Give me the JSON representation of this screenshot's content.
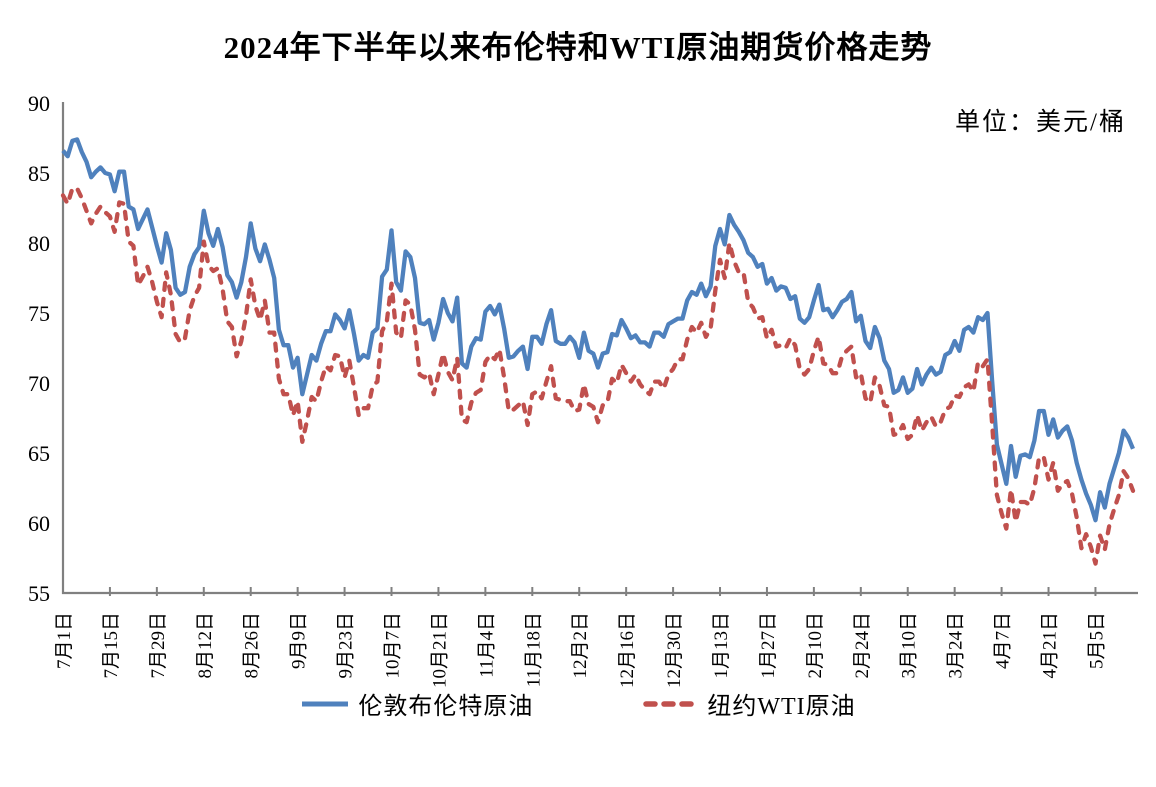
{
  "chart_data": {
    "type": "line",
    "title": "2024年下半年以来布伦特和WTI原油期货价格走势",
    "unit_label": "单位：美元/桶",
    "ylim": [
      55,
      90
    ],
    "yticks": [
      55,
      60,
      65,
      70,
      75,
      80,
      85,
      90
    ],
    "x_tick_interval": 10,
    "x_tick_labels": [
      "7月1日",
      "7月15日",
      "7月29日",
      "8月12日",
      "8月26日",
      "9月9日",
      "9月23日",
      "10月7日",
      "10月21日",
      "11月4日",
      "11月18日",
      "12月2日",
      "12月16日",
      "12月30日",
      "1月13日",
      "1月27日",
      "2月10日",
      "2月24日",
      "3月10日",
      "3月24日",
      "4月7日",
      "4月21日",
      "5月5日"
    ],
    "grid": false,
    "legend_position": "bottom",
    "axis_color": "#808080",
    "text_color": "#000000",
    "series": [
      {
        "name": "伦敦布伦特原油",
        "color": "#4F81BD",
        "style": "solid",
        "values": [
          86.6,
          86.2,
          87.3,
          87.4,
          86.5,
          85.8,
          84.7,
          85.1,
          85.4,
          85.0,
          84.9,
          83.7,
          85.1,
          85.1,
          82.6,
          82.4,
          81.0,
          81.7,
          82.4,
          81.1,
          79.8,
          78.6,
          80.7,
          79.5,
          76.8,
          76.3,
          76.5,
          78.3,
          79.2,
          79.7,
          82.3,
          80.7,
          79.8,
          81.0,
          79.7,
          77.7,
          77.2,
          76.1,
          77.2,
          79.0,
          81.4,
          79.6,
          78.7,
          79.9,
          78.8,
          77.5,
          73.8,
          72.7,
          72.7,
          71.1,
          71.8,
          69.2,
          70.6,
          72.0,
          71.6,
          72.8,
          73.7,
          73.7,
          74.9,
          74.5,
          73.9,
          75.2,
          73.5,
          71.6,
          72.0,
          71.8,
          73.6,
          73.9,
          77.6,
          78.1,
          80.9,
          77.2,
          76.6,
          79.4,
          79.0,
          77.5,
          74.3,
          74.2,
          74.5,
          73.1,
          74.3,
          76.0,
          75.0,
          74.4,
          76.1,
          71.4,
          71.1,
          72.6,
          73.2,
          73.1,
          75.1,
          75.5,
          74.9,
          75.6,
          73.9,
          71.8,
          71.9,
          72.3,
          72.6,
          71.0,
          73.3,
          73.3,
          72.8,
          74.2,
          75.2,
          73.0,
          72.8,
          72.8,
          73.3,
          72.9,
          71.8,
          73.6,
          72.3,
          72.1,
          71.1,
          72.1,
          72.2,
          73.5,
          73.4,
          74.5,
          73.9,
          73.2,
          73.4,
          72.9,
          72.9,
          72.6,
          73.6,
          73.6,
          73.3,
          74.2,
          74.4,
          74.6,
          74.6,
          75.9,
          76.5,
          76.3,
          77.1,
          76.2,
          76.9,
          79.8,
          81.0,
          79.9,
          82.0,
          81.3,
          80.8,
          80.2,
          79.3,
          79.0,
          78.3,
          78.5,
          77.1,
          77.5,
          76.6,
          76.9,
          76.8,
          76.0,
          76.2,
          74.6,
          74.3,
          74.7,
          75.9,
          77.0,
          75.2,
          75.3,
          74.7,
          75.2,
          75.8,
          76.0,
          76.5,
          74.4,
          74.8,
          73.0,
          72.5,
          74.0,
          73.2,
          71.6,
          71.0,
          69.3,
          69.5,
          70.4,
          69.3,
          69.6,
          71.0,
          69.9,
          70.6,
          71.1,
          70.6,
          70.8,
          72.0,
          72.2,
          73.0,
          72.3,
          73.8,
          74.0,
          73.6,
          74.7,
          74.5,
          75.0,
          70.1,
          65.6,
          64.2,
          62.8,
          65.5,
          63.3,
          64.8,
          64.9,
          64.7,
          65.9,
          68.0,
          68.0,
          66.3,
          67.4,
          66.1,
          66.6,
          66.9,
          65.9,
          64.3,
          63.1,
          62.1,
          61.3,
          60.2,
          62.2,
          61.1,
          62.8,
          63.9,
          65.0,
          66.6,
          66.1,
          65.3
        ]
      },
      {
        "name": "纽约WTI原油",
        "color": "#C0504D",
        "style": "dashed",
        "values": [
          83.4,
          82.8,
          83.9,
          83.9,
          83.2,
          82.3,
          81.4,
          82.1,
          82.6,
          82.2,
          81.9,
          80.8,
          82.9,
          82.8,
          80.1,
          79.8,
          77.0,
          77.6,
          78.3,
          77.2,
          75.8,
          74.7,
          77.9,
          76.3,
          73.5,
          72.9,
          73.2,
          75.2,
          76.2,
          76.8,
          80.1,
          78.4,
          78.0,
          78.2,
          76.7,
          74.4,
          74.0,
          71.9,
          73.0,
          74.8,
          77.4,
          75.5,
          74.5,
          75.9,
          73.6,
          73.6,
          70.3,
          69.2,
          69.2,
          67.7,
          68.7,
          65.8,
          67.3,
          69.0,
          68.7,
          70.1,
          71.2,
          70.9,
          72.0,
          71.9,
          70.4,
          71.6,
          69.7,
          67.7,
          68.2,
          68.2,
          69.8,
          70.1,
          73.7,
          74.4,
          77.1,
          73.6,
          73.2,
          75.9,
          75.6,
          73.8,
          70.6,
          70.4,
          70.7,
          69.2,
          70.6,
          72.1,
          70.8,
          70.2,
          71.8,
          67.4,
          67.2,
          68.6,
          69.3,
          69.5,
          71.5,
          72.0,
          71.7,
          72.4,
          70.4,
          68.0,
          68.1,
          68.4,
          68.7,
          67.0,
          69.2,
          69.4,
          68.9,
          70.1,
          71.2,
          68.9,
          68.8,
          68.7,
          68.7,
          68.0,
          68.1,
          69.9,
          68.5,
          68.3,
          67.2,
          68.4,
          68.6,
          70.3,
          70.0,
          71.3,
          70.7,
          70.1,
          70.6,
          69.9,
          69.5,
          69.2,
          70.1,
          70.1,
          69.6,
          70.6,
          71.0,
          71.7,
          71.7,
          73.1,
          74.0,
          73.6,
          74.3,
          73.3,
          73.9,
          76.6,
          78.8,
          77.5,
          80.0,
          78.7,
          77.9,
          77.9,
          75.8,
          75.4,
          74.6,
          74.7,
          73.2,
          73.8,
          72.6,
          72.7,
          72.5,
          73.2,
          72.7,
          71.0,
          70.6,
          71.0,
          72.3,
          73.3,
          71.4,
          71.3,
          70.7,
          70.7,
          71.9,
          72.3,
          72.6,
          70.4,
          70.7,
          68.9,
          68.6,
          70.4,
          69.8,
          68.4,
          68.3,
          66.3,
          66.4,
          67.0,
          66.0,
          66.3,
          67.7,
          66.6,
          67.2,
          67.6,
          66.9,
          67.2,
          68.1,
          68.3,
          69.1,
          69.0,
          69.7,
          69.9,
          69.4,
          71.5,
          71.2,
          71.7,
          67.0,
          62.0,
          60.7,
          59.6,
          62.4,
          60.1,
          61.5,
          61.5,
          61.3,
          62.5,
          64.7,
          64.7,
          63.1,
          64.3,
          62.3,
          62.8,
          63.0,
          62.1,
          60.4,
          58.2,
          59.2,
          58.3,
          57.1,
          59.1,
          58.1,
          59.9,
          61.0,
          62.0,
          63.7,
          63.2,
          62.3
        ]
      }
    ]
  }
}
